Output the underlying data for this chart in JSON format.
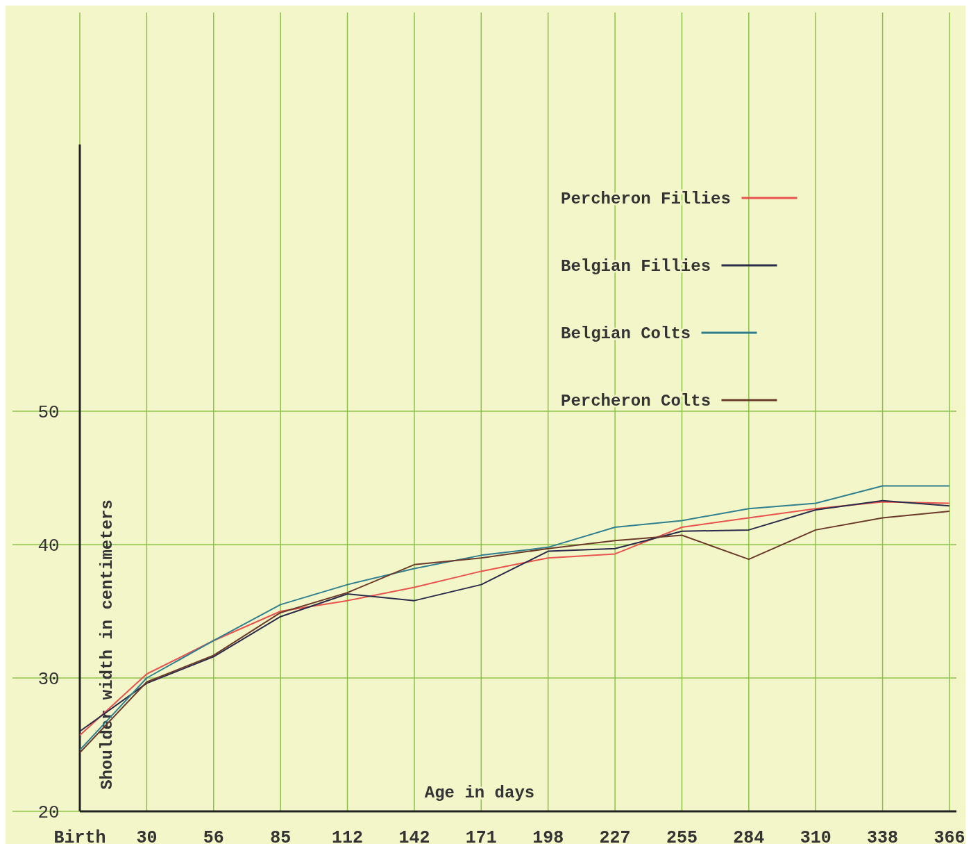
{
  "chart_data": {
    "type": "line",
    "xlabel": "Age in days",
    "ylabel": "Shoulder width in centimeters",
    "categories": [
      "Birth",
      "30",
      "56",
      "85",
      "112",
      "142",
      "171",
      "198",
      "227",
      "255",
      "284",
      "310",
      "338",
      "366"
    ],
    "series": [
      {
        "name": "Percheron Fillies",
        "color": "#e8524f",
        "values": [
          25.7,
          30.3,
          32.8,
          35.0,
          35.8,
          36.8,
          38.0,
          39.0,
          39.3,
          41.3,
          42.0,
          42.7,
          43.2,
          43.1
        ]
      },
      {
        "name": "Belgian Fillies",
        "color": "#2a2a4a",
        "values": [
          26.0,
          29.6,
          31.6,
          34.6,
          36.3,
          35.8,
          37.0,
          39.5,
          39.7,
          41.0,
          41.1,
          42.6,
          43.3,
          42.9
        ]
      },
      {
        "name": "Belgian Colts",
        "color": "#2f7f8f",
        "values": [
          24.6,
          30.0,
          32.8,
          35.5,
          37.0,
          38.2,
          39.2,
          39.8,
          41.3,
          41.8,
          42.7,
          43.1,
          44.4,
          44.4
        ]
      },
      {
        "name": "Percheron Colts",
        "color": "#6b3a2a",
        "values": [
          24.4,
          29.7,
          31.7,
          34.9,
          36.4,
          38.5,
          39.0,
          39.7,
          40.3,
          40.7,
          38.9,
          41.1,
          42.0,
          42.5
        ]
      }
    ],
    "ylim": [
      20,
      70
    ],
    "yticks": [
      20,
      30,
      40,
      50
    ],
    "grid": true,
    "legend": "top right",
    "line_style": "solid"
  }
}
